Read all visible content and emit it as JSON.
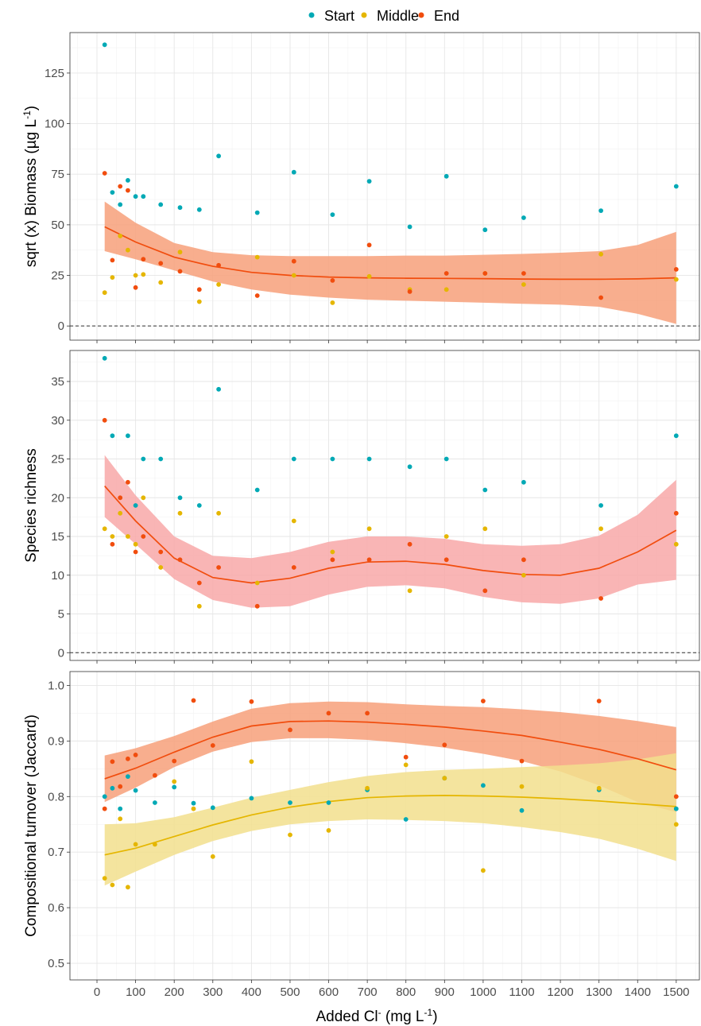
{
  "legend": {
    "items": [
      {
        "label": "Start",
        "color": "#00A9B5"
      },
      {
        "label": "Middle",
        "color": "#E5B600"
      },
      {
        "label": "End",
        "color": "#F14D0E"
      }
    ]
  },
  "xaxis": {
    "title": "Added Cl",
    "title_sup": "-",
    "title_unit_open": " (mg L",
    "title_unit_sup": "-1",
    "title_unit_close": ")",
    "ticks": [
      0,
      100,
      200,
      300,
      400,
      500,
      600,
      700,
      800,
      900,
      1000,
      1100,
      1200,
      1300,
      1400,
      1500
    ],
    "range": [
      -70,
      1560
    ]
  },
  "chart_data": [
    {
      "type": "scatter",
      "ylabel": "sqrt (x) Biomass (µg L",
      "ylabel_sup": "-1",
      "ylabel_close": ")",
      "ylim": [
        -7,
        145
      ],
      "yticks": [
        0,
        25,
        50,
        75,
        100,
        125
      ],
      "hline": 0,
      "series": [
        {
          "name": "Start",
          "color": "#00A9B5",
          "points": [
            [
              20,
              139
            ],
            [
              40,
              66
            ],
            [
              60,
              60
            ],
            [
              80,
              72
            ],
            [
              100,
              64
            ],
            [
              120,
              64
            ],
            [
              165,
              60
            ],
            [
              215,
              58.5
            ],
            [
              265,
              57.5
            ],
            [
              315,
              84
            ],
            [
              415,
              56
            ],
            [
              510,
              76
            ],
            [
              610,
              55
            ],
            [
              705,
              71.5
            ],
            [
              810,
              49
            ],
            [
              905,
              74
            ],
            [
              1005,
              47.5
            ],
            [
              1105,
              53.5
            ],
            [
              1305,
              57
            ],
            [
              1500,
              69
            ]
          ]
        },
        {
          "name": "Middle",
          "color": "#E5B600",
          "points": [
            [
              20,
              16.5
            ],
            [
              40,
              24
            ],
            [
              60,
              44.5
            ],
            [
              80,
              37.5
            ],
            [
              100,
              25
            ],
            [
              120,
              25.5
            ],
            [
              165,
              21.5
            ],
            [
              215,
              36.5
            ],
            [
              265,
              12
            ],
            [
              315,
              20.5
            ],
            [
              415,
              34
            ],
            [
              510,
              25
            ],
            [
              610,
              11.5
            ],
            [
              705,
              24.5
            ],
            [
              810,
              18
            ],
            [
              905,
              18
            ],
            [
              1005,
              26
            ],
            [
              1105,
              20.5
            ],
            [
              1305,
              35.5
            ],
            [
              1500,
              23
            ]
          ]
        },
        {
          "name": "End",
          "color": "#F14D0E",
          "points": [
            [
              20,
              75.5
            ],
            [
              40,
              32.5
            ],
            [
              60,
              69
            ],
            [
              80,
              67
            ],
            [
              100,
              19
            ],
            [
              120,
              33
            ],
            [
              165,
              31
            ],
            [
              215,
              27
            ],
            [
              265,
              18
            ],
            [
              315,
              30
            ],
            [
              415,
              15
            ],
            [
              510,
              32
            ],
            [
              610,
              22.5
            ],
            [
              705,
              40
            ],
            [
              810,
              17
            ],
            [
              905,
              26
            ],
            [
              1005,
              26
            ],
            [
              1105,
              26
            ],
            [
              1305,
              14
            ],
            [
              1500,
              28
            ]
          ]
        }
      ],
      "fits": [
        {
          "name": "End",
          "color": "#F14D0E",
          "band_color": "#F7A07A",
          "x": [
            20,
            100,
            200,
            300,
            400,
            500,
            600,
            700,
            800,
            900,
            1000,
            1100,
            1200,
            1300,
            1400,
            1500
          ],
          "y": [
            49,
            41.5,
            34,
            29.5,
            26.5,
            25,
            24.2,
            23.8,
            23.6,
            23.5,
            23.4,
            23.2,
            23.1,
            23.1,
            23.3,
            23.8
          ],
          "lower": [
            37,
            33,
            27.5,
            22,
            18,
            15.5,
            14,
            13,
            12.5,
            12,
            11.5,
            11,
            10.5,
            9.5,
            6,
            1
          ],
          "upper": [
            61.5,
            51,
            41,
            36.5,
            35,
            34.5,
            34.5,
            34.5,
            34.8,
            34.8,
            35.2,
            35.6,
            36.2,
            37,
            40,
            46.5
          ]
        }
      ]
    },
    {
      "type": "scatter",
      "ylabel": "Species richness",
      "ylim": [
        -1,
        39
      ],
      "yticks": [
        0,
        5,
        10,
        15,
        20,
        25,
        30,
        35
      ],
      "hline": 0,
      "series": [
        {
          "name": "Start",
          "color": "#00A9B5",
          "points": [
            [
              20,
              38
            ],
            [
              40,
              28
            ],
            [
              80,
              28
            ],
            [
              100,
              19
            ],
            [
              120,
              25
            ],
            [
              165,
              25
            ],
            [
              215,
              20
            ],
            [
              265,
              19
            ],
            [
              315,
              34
            ],
            [
              415,
              21
            ],
            [
              510,
              25
            ],
            [
              610,
              25
            ],
            [
              705,
              25
            ],
            [
              810,
              24
            ],
            [
              905,
              25
            ],
            [
              1005,
              21
            ],
            [
              1105,
              22
            ],
            [
              1305,
              19
            ],
            [
              1500,
              28
            ]
          ]
        },
        {
          "name": "Middle",
          "color": "#E5B600",
          "points": [
            [
              20,
              16
            ],
            [
              40,
              15
            ],
            [
              60,
              18
            ],
            [
              80,
              15
            ],
            [
              100,
              14
            ],
            [
              120,
              20
            ],
            [
              165,
              11
            ],
            [
              215,
              18
            ],
            [
              265,
              6
            ],
            [
              315,
              18
            ],
            [
              415,
              9
            ],
            [
              510,
              17
            ],
            [
              610,
              13
            ],
            [
              705,
              16
            ],
            [
              810,
              8
            ],
            [
              905,
              15
            ],
            [
              1005,
              16
            ],
            [
              1105,
              10
            ],
            [
              1305,
              16
            ],
            [
              1500,
              14
            ]
          ]
        },
        {
          "name": "End",
          "color": "#F14D0E",
          "points": [
            [
              20,
              30
            ],
            [
              40,
              14
            ],
            [
              60,
              20
            ],
            [
              80,
              22
            ],
            [
              100,
              13
            ],
            [
              120,
              15
            ],
            [
              165,
              13
            ],
            [
              215,
              12
            ],
            [
              265,
              9
            ],
            [
              315,
              11
            ],
            [
              415,
              6
            ],
            [
              510,
              11
            ],
            [
              610,
              12
            ],
            [
              705,
              12
            ],
            [
              810,
              14
            ],
            [
              905,
              12
            ],
            [
              1005,
              8
            ],
            [
              1105,
              12
            ],
            [
              1305,
              7
            ],
            [
              1500,
              18
            ]
          ]
        }
      ],
      "fits": [
        {
          "name": "End",
          "color": "#F14D0E",
          "band_color": "#F8A8A8",
          "x": [
            20,
            100,
            200,
            300,
            400,
            500,
            600,
            700,
            800,
            900,
            1000,
            1100,
            1200,
            1300,
            1400,
            1500
          ],
          "y": [
            21.5,
            17,
            12.2,
            9.7,
            9,
            9.6,
            10.9,
            11.7,
            11.8,
            11.4,
            10.6,
            10.1,
            10,
            10.9,
            13,
            15.8
          ],
          "lower": [
            17.5,
            14,
            9.5,
            6.8,
            5.8,
            6,
            7.5,
            8.5,
            8.7,
            8.3,
            7.2,
            6.5,
            6.3,
            7,
            8.8,
            9.4
          ],
          "upper": [
            25.5,
            20.3,
            15,
            12.5,
            12.2,
            13,
            14.3,
            15,
            15,
            14.7,
            14,
            13.8,
            14,
            15.1,
            17.8,
            22.3
          ]
        }
      ]
    },
    {
      "type": "scatter",
      "ylabel": "Compositional turnover (Jaccard)",
      "ylim": [
        0.47,
        1.025
      ],
      "yticks": [
        0.5,
        0.6,
        0.7,
        0.8,
        0.9,
        1.0
      ],
      "yticklabels": [
        "0.5",
        "0.6",
        "0.7",
        "0.8",
        "0.9",
        "1.0"
      ],
      "series": [
        {
          "name": "Start",
          "color": "#00A9B5",
          "points": [
            [
              20,
              0.8
            ],
            [
              40,
              0.815
            ],
            [
              60,
              0.778
            ],
            [
              80,
              0.836
            ],
            [
              100,
              0.811
            ],
            [
              150,
              0.789
            ],
            [
              200,
              0.817
            ],
            [
              250,
              0.788
            ],
            [
              300,
              0.78
            ],
            [
              400,
              0.797
            ],
            [
              500,
              0.789
            ],
            [
              600,
              0.789
            ],
            [
              700,
              0.812
            ],
            [
              800,
              0.759
            ],
            [
              900,
              0.833
            ],
            [
              1000,
              0.82
            ],
            [
              1100,
              0.775
            ],
            [
              1300,
              0.812
            ],
            [
              1500,
              0.778
            ]
          ]
        },
        {
          "name": "Middle",
          "color": "#E5B600",
          "points": [
            [
              20,
              0.653
            ],
            [
              40,
              0.641
            ],
            [
              60,
              0.76
            ],
            [
              80,
              0.637
            ],
            [
              100,
              0.714
            ],
            [
              150,
              0.714
            ],
            [
              200,
              0.827
            ],
            [
              250,
              0.778
            ],
            [
              300,
              0.692
            ],
            [
              400,
              0.863
            ],
            [
              500,
              0.731
            ],
            [
              600,
              0.739
            ],
            [
              700,
              0.815
            ],
            [
              800,
              0.857
            ],
            [
              900,
              0.833
            ],
            [
              1000,
              0.667
            ],
            [
              1100,
              0.818
            ],
            [
              1300,
              0.815
            ],
            [
              1500,
              0.75
            ]
          ]
        },
        {
          "name": "End",
          "color": "#F14D0E",
          "points": [
            [
              20,
              0.778
            ],
            [
              40,
              0.863
            ],
            [
              60,
              0.818
            ],
            [
              80,
              0.868
            ],
            [
              100,
              0.875
            ],
            [
              150,
              0.838
            ],
            [
              200,
              0.864
            ],
            [
              250,
              0.973
            ],
            [
              300,
              0.892
            ],
            [
              400,
              0.971
            ],
            [
              500,
              0.92
            ],
            [
              600,
              0.95
            ],
            [
              700,
              0.95
            ],
            [
              800,
              0.871
            ],
            [
              900,
              0.893
            ],
            [
              1000,
              0.972
            ],
            [
              1100,
              0.864
            ],
            [
              1300,
              0.972
            ],
            [
              1500,
              0.8
            ]
          ]
        }
      ],
      "fits": [
        {
          "name": "End",
          "color": "#F14D0E",
          "band_color": "#F7A07A",
          "x": [
            20,
            100,
            200,
            300,
            400,
            500,
            600,
            700,
            800,
            900,
            1000,
            1100,
            1200,
            1300,
            1400,
            1500
          ],
          "y": [
            0.832,
            0.851,
            0.88,
            0.907,
            0.927,
            0.935,
            0.936,
            0.934,
            0.93,
            0.925,
            0.918,
            0.91,
            0.898,
            0.885,
            0.868,
            0.848
          ],
          "lower": [
            0.79,
            0.816,
            0.853,
            0.881,
            0.898,
            0.905,
            0.905,
            0.902,
            0.896,
            0.888,
            0.877,
            0.864,
            0.845,
            0.82,
            0.79,
            0.772
          ],
          "upper": [
            0.874,
            0.887,
            0.909,
            0.935,
            0.958,
            0.968,
            0.971,
            0.97,
            0.966,
            0.963,
            0.961,
            0.957,
            0.952,
            0.945,
            0.936,
            0.925
          ]
        },
        {
          "name": "Middle",
          "color": "#E5B600",
          "band_color": "#F2DF8D",
          "x": [
            20,
            100,
            200,
            300,
            400,
            500,
            600,
            700,
            800,
            900,
            1000,
            1100,
            1200,
            1300,
            1400,
            1500
          ],
          "y": [
            0.695,
            0.707,
            0.728,
            0.749,
            0.767,
            0.781,
            0.791,
            0.798,
            0.801,
            0.802,
            0.801,
            0.799,
            0.796,
            0.792,
            0.787,
            0.782
          ],
          "lower": [
            0.64,
            0.665,
            0.695,
            0.72,
            0.738,
            0.75,
            0.756,
            0.759,
            0.758,
            0.756,
            0.752,
            0.745,
            0.736,
            0.724,
            0.706,
            0.684
          ],
          "upper": [
            0.75,
            0.752,
            0.763,
            0.78,
            0.798,
            0.812,
            0.826,
            0.837,
            0.844,
            0.848,
            0.85,
            0.853,
            0.856,
            0.86,
            0.867,
            0.878
          ]
        }
      ]
    }
  ]
}
